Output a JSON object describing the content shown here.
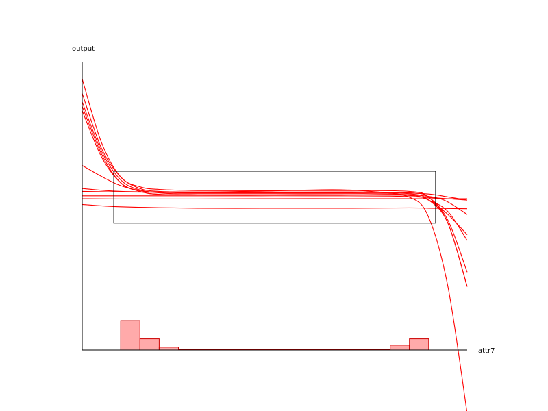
{
  "chart_data": {
    "type": "line",
    "xlabel": "attr7",
    "ylabel": "output",
    "grid": false,
    "x_range": [
      0,
      1
    ],
    "y_range": [
      0,
      1
    ],
    "curve_color": "#ff0000",
    "histogram_fill": "#ffaaaa",
    "histogram_stroke": "#cc0000",
    "series": [
      {
        "points": [
          [
            0,
            0.94
          ],
          [
            0.05,
            0.72
          ],
          [
            0.1,
            0.6
          ],
          [
            0.15,
            0.566
          ],
          [
            0.2,
            0.557
          ],
          [
            0.3,
            0.553
          ],
          [
            0.5,
            0.553
          ],
          [
            0.7,
            0.553
          ],
          [
            0.85,
            0.55
          ],
          [
            0.9,
            0.53
          ],
          [
            0.95,
            0.44
          ],
          [
            1.0,
            0.22
          ]
        ]
      },
      {
        "points": [
          [
            0,
            0.89
          ],
          [
            0.05,
            0.7
          ],
          [
            0.1,
            0.6
          ],
          [
            0.15,
            0.56
          ],
          [
            0.2,
            0.55
          ],
          [
            0.3,
            0.548
          ],
          [
            0.5,
            0.548
          ],
          [
            0.7,
            0.548
          ],
          [
            0.85,
            0.545
          ],
          [
            0.9,
            0.53
          ],
          [
            0.95,
            0.45
          ],
          [
            1.0,
            0.27
          ]
        ]
      },
      {
        "points": [
          [
            0,
            0.86
          ],
          [
            0.05,
            0.69
          ],
          [
            0.1,
            0.59
          ],
          [
            0.15,
            0.555
          ],
          [
            0.2,
            0.547
          ],
          [
            0.3,
            0.545
          ],
          [
            0.5,
            0.545
          ],
          [
            0.7,
            0.545
          ],
          [
            0.85,
            0.542
          ],
          [
            0.9,
            0.52
          ],
          [
            0.95,
            0.44
          ],
          [
            1.0,
            0.22
          ]
        ]
      },
      {
        "points": [
          [
            0,
            0.845
          ],
          [
            0.05,
            0.68
          ],
          [
            0.1,
            0.58
          ],
          [
            0.15,
            0.55
          ],
          [
            0.2,
            0.54
          ],
          [
            0.3,
            0.538
          ],
          [
            0.5,
            0.538
          ],
          [
            0.7,
            0.538
          ],
          [
            0.85,
            0.536
          ],
          [
            0.9,
            0.52
          ],
          [
            0.95,
            0.47
          ],
          [
            1.0,
            0.4
          ]
        ]
      },
      {
        "points": [
          [
            0,
            0.83
          ],
          [
            0.05,
            0.67
          ],
          [
            0.1,
            0.58
          ],
          [
            0.15,
            0.55
          ],
          [
            0.2,
            0.54
          ],
          [
            0.3,
            0.538
          ],
          [
            0.5,
            0.538
          ],
          [
            0.7,
            0.538
          ],
          [
            0.85,
            0.537
          ],
          [
            0.9,
            0.52
          ],
          [
            0.95,
            0.48
          ],
          [
            1.0,
            0.38
          ]
        ]
      },
      {
        "points": [
          [
            0,
            0.64
          ],
          [
            0.1,
            0.57
          ],
          [
            0.2,
            0.545
          ],
          [
            0.3,
            0.542
          ],
          [
            0.5,
            0.542
          ],
          [
            0.7,
            0.542
          ],
          [
            0.8,
            0.541
          ],
          [
            0.88,
            0.536
          ],
          [
            0.94,
            0.52
          ],
          [
            1.0,
            0.47
          ]
        ]
      },
      {
        "points": [
          [
            0,
            0.56
          ],
          [
            0.1,
            0.55
          ],
          [
            0.3,
            0.548
          ],
          [
            0.5,
            0.552
          ],
          [
            0.65,
            0.556
          ],
          [
            0.75,
            0.55
          ],
          [
            0.85,
            0.53
          ],
          [
            0.9,
            0.46
          ],
          [
            0.95,
            0.22
          ],
          [
            1.0,
            -0.22
          ]
        ]
      },
      {
        "points": [
          [
            0,
            0.55
          ],
          [
            0.1,
            0.548
          ],
          [
            0.3,
            0.546
          ],
          [
            0.5,
            0.547
          ],
          [
            0.7,
            0.548
          ],
          [
            0.8,
            0.547
          ],
          [
            0.9,
            0.541
          ],
          [
            0.95,
            0.531
          ],
          [
            1.0,
            0.52
          ]
        ]
      },
      {
        "points": [
          [
            0,
            0.535
          ],
          [
            0.2,
            0.535
          ],
          [
            0.4,
            0.535
          ],
          [
            0.6,
            0.535
          ],
          [
            0.8,
            0.534
          ],
          [
            0.9,
            0.529
          ],
          [
            1.0,
            0.52
          ]
        ]
      },
      {
        "points": [
          [
            0,
            0.525
          ],
          [
            0.1,
            0.524
          ],
          [
            0.3,
            0.524
          ],
          [
            0.5,
            0.525
          ],
          [
            0.7,
            0.525
          ],
          [
            0.9,
            0.525
          ],
          [
            1.0,
            0.525
          ]
        ]
      },
      {
        "points": [
          [
            0,
            0.505
          ],
          [
            0.1,
            0.497
          ],
          [
            0.3,
            0.492
          ],
          [
            0.5,
            0.492
          ],
          [
            0.7,
            0.492
          ],
          [
            0.85,
            0.493
          ],
          [
            0.9,
            0.492
          ],
          [
            1.0,
            0.49
          ]
        ]
      }
    ],
    "histogram": {
      "bin_width": 0.05,
      "bins": [
        {
          "start": 0.1,
          "height": 0.102
        },
        {
          "start": 0.15,
          "height": 0.039
        },
        {
          "start": 0.2,
          "height": 0.01
        },
        {
          "start": 0.25,
          "height": 0.002
        },
        {
          "start": 0.3,
          "height": 0.002
        },
        {
          "start": 0.35,
          "height": 0.002
        },
        {
          "start": 0.4,
          "height": 0.002
        },
        {
          "start": 0.45,
          "height": 0.002
        },
        {
          "start": 0.5,
          "height": 0.002
        },
        {
          "start": 0.55,
          "height": 0.002
        },
        {
          "start": 0.6,
          "height": 0.002
        },
        {
          "start": 0.65,
          "height": 0.002
        },
        {
          "start": 0.7,
          "height": 0.002
        },
        {
          "start": 0.75,
          "height": 0.002
        },
        {
          "start": 0.8,
          "height": 0.017
        },
        {
          "start": 0.85,
          "height": 0.039
        }
      ]
    },
    "focus_box": {
      "x": [
        0.082,
        0.918
      ],
      "y": [
        0.44,
        0.62
      ]
    }
  }
}
